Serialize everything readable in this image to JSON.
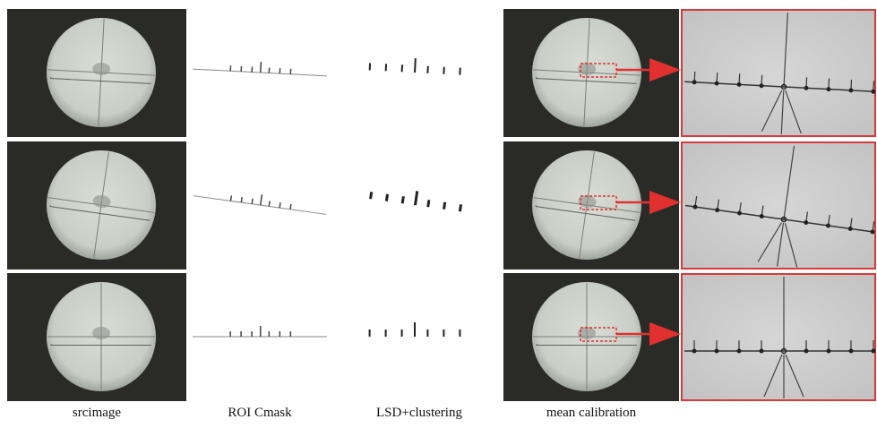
{
  "columns": [
    "srcimage",
    "ROI Cmask",
    "LSD+clustering",
    "mean calibration"
  ]
}
